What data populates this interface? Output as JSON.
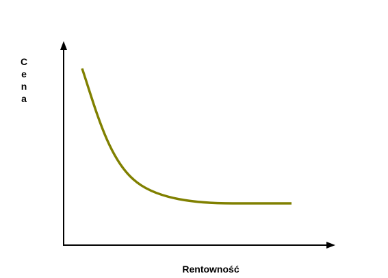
{
  "diagram": {
    "ylabel": "Cena",
    "xlabel": "Rentowność",
    "colors": {
      "axis": "#000000",
      "curve": "#808000"
    }
  }
}
